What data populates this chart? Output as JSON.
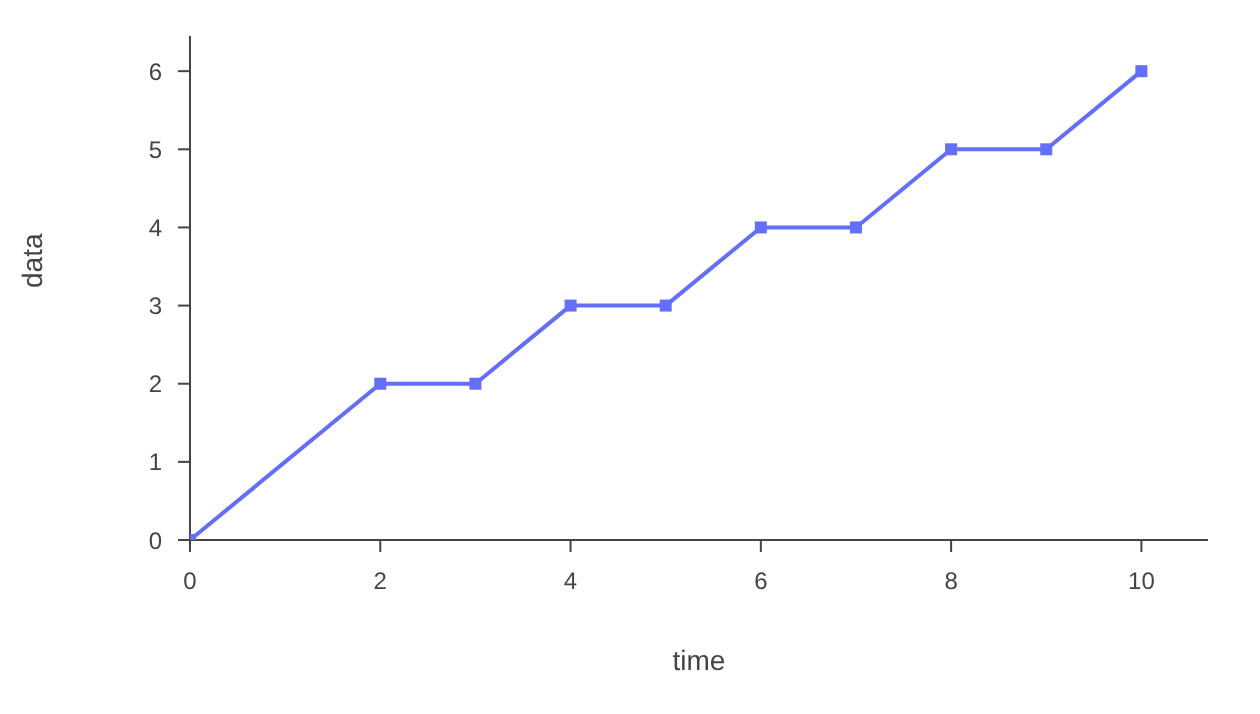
{
  "chart_data": {
    "type": "line",
    "xlabel": "time",
    "ylabel": "data",
    "x": [
      0,
      2,
      3,
      4,
      5,
      6,
      7,
      8,
      9,
      10
    ],
    "series": [
      {
        "color": "#636efa",
        "values": [
          0,
          2,
          2,
          3,
          3,
          4,
          4,
          5,
          5,
          6
        ]
      }
    ],
    "xlim": [
      0,
      10.7
    ],
    "xticks": [
      0,
      2,
      4,
      6,
      8,
      10
    ],
    "ylim": [
      0,
      6.45
    ],
    "yticks": [
      0,
      1,
      2,
      3,
      4,
      5,
      6
    ],
    "grid": false,
    "legend": false,
    "marker": "square",
    "line_style": "solid"
  }
}
